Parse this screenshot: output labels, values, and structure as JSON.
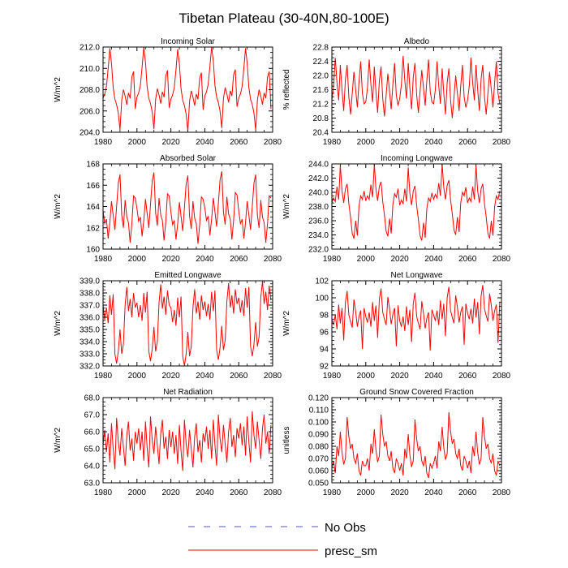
{
  "figure": {
    "title": "Tibetan Plateau (30-40N,80-100E)",
    "legend": [
      {
        "label": "No Obs",
        "color": "#5050c8",
        "style": "dashed"
      },
      {
        "label": "presc_sm",
        "color": "#ff0000",
        "style": "solid"
      }
    ]
  },
  "chart_data": [
    {
      "type": "line",
      "title": "Incoming Solar",
      "xlabel": "",
      "ylabel": "W/m^2",
      "xlim": [
        1980,
        2080
      ],
      "ylim": [
        204,
        212
      ],
      "yticks": [
        204,
        206,
        208,
        210,
        212
      ],
      "decimals": 1,
      "series_name": "presc_sm",
      "color": "#ff0000",
      "x_start": 1980,
      "x_end": 2079,
      "pattern": [
        207.2,
        207.6,
        208.3,
        210.0,
        211.9,
        210.5,
        208.2,
        207.1,
        206.6,
        205.8,
        204.2,
        207.0,
        208.0,
        207.4,
        206.6,
        207.7,
        207.2,
        209.2,
        209.7,
        206.2
      ],
      "mods": [
        0.0,
        0.1,
        -0.1,
        0.2,
        0.0
      ]
    },
    {
      "type": "line",
      "title": "Albedo",
      "xlabel": "",
      "ylabel": "% reflected",
      "xlim": [
        1980,
        2080
      ],
      "ylim": [
        20.4,
        22.8
      ],
      "yticks": [
        20.4,
        20.8,
        21.2,
        21.6,
        22.0,
        22.4,
        22.8
      ],
      "decimals": 1,
      "series_name": "presc_sm",
      "color": "#ff0000",
      "x_start": 1980,
      "x_end": 2079,
      "pattern": [
        21.3,
        21.7,
        22.5,
        21.8,
        21.3,
        22.3,
        21.6,
        21.0,
        21.9,
        22.3,
        21.4,
        20.9,
        21.5,
        22.1,
        21.6,
        21.1,
        21.8,
        22.4,
        21.5,
        21.2
      ],
      "mods": [
        0.0,
        -0.05,
        0.05,
        -0.1,
        0.0
      ]
    },
    {
      "type": "line",
      "title": "Absorbed Solar",
      "xlabel": "",
      "ylabel": "W/m^2",
      "xlim": [
        1980,
        2080
      ],
      "ylim": [
        160,
        168
      ],
      "yticks": [
        160,
        162,
        164,
        166,
        168
      ],
      "decimals": 0,
      "series_name": "presc_sm",
      "color": "#ff0000",
      "x_start": 1980,
      "x_end": 2079,
      "pattern": [
        163.6,
        162.4,
        162.8,
        161.0,
        162.5,
        164.5,
        163.2,
        161.8,
        164.0,
        166.2,
        167.0,
        163.2,
        162.0,
        164.6,
        163.0,
        162.5,
        160.6,
        162.4,
        165.0,
        164.8
      ],
      "mods": [
        0.0,
        0.2,
        -0.1,
        0.3,
        0.0
      ]
    },
    {
      "type": "line",
      "title": "Incoming Longwave",
      "xlabel": "",
      "ylabel": "W/m^2",
      "xlim": [
        1980,
        2080
      ],
      "ylim": [
        232,
        244
      ],
      "yticks": [
        232.0,
        234.0,
        236.0,
        238.0,
        240.0,
        242.0,
        244.0
      ],
      "decimals": 1,
      "series_name": "presc_sm",
      "color": "#ff0000",
      "x_start": 1980,
      "x_end": 2079,
      "pattern": [
        238.5,
        239.2,
        238.7,
        240.8,
        239.0,
        243.8,
        240.2,
        238.5,
        240.5,
        241.2,
        238.4,
        236.5,
        234.2,
        233.5,
        236.0,
        233.9,
        238.0,
        239.5,
        239.0,
        240.2
      ],
      "mods": [
        0.0,
        0.3,
        -0.3,
        0.5,
        0.0
      ]
    },
    {
      "type": "line",
      "title": "Emitted Longwave",
      "xlabel": "",
      "ylabel": "W/m^2",
      "xlim": [
        1980,
        2080
      ],
      "ylim": [
        332,
        339
      ],
      "yticks": [
        332.0,
        333.0,
        334.0,
        335.0,
        336.0,
        337.0,
        338.0,
        339.0
      ],
      "decimals": 1,
      "series_name": "presc_sm",
      "color": "#ff0000",
      "x_start": 1980,
      "x_end": 2079,
      "pattern": [
        337.0,
        335.8,
        336.8,
        335.5,
        337.8,
        336.2,
        337.9,
        333.0,
        332.2,
        333.2,
        335.0,
        333.0,
        333.8,
        337.0,
        338.5,
        336.5,
        337.5,
        336.0,
        338.0,
        336.8
      ],
      "mods": [
        0.0,
        0.2,
        -0.2,
        0.3,
        0.6
      ]
    },
    {
      "type": "line",
      "title": "Net Longwave",
      "xlabel": "",
      "ylabel": "W/m^2",
      "xlim": [
        1980,
        2080
      ],
      "ylim": [
        92,
        102
      ],
      "yticks": [
        92,
        94,
        96,
        98,
        100,
        102
      ],
      "decimals": 0,
      "series_name": "presc_sm",
      "color": "#ff0000",
      "x_start": 1980,
      "x_end": 2079,
      "pattern": [
        97.5,
        96.8,
        98.0,
        96.3,
        99.2,
        97.0,
        98.8,
        95.0,
        99.5,
        100.8,
        98.0,
        97.2,
        96.5,
        99.8,
        98.4,
        96.6,
        97.8,
        98.5,
        94.0,
        98.8
      ],
      "mods": [
        0.0,
        0.3,
        -0.2,
        0.5,
        0.7
      ]
    },
    {
      "type": "line",
      "title": "Net Radiation",
      "xlabel": "",
      "ylabel": "W/m^2",
      "xlim": [
        1980,
        2080
      ],
      "ylim": [
        63,
        68
      ],
      "yticks": [
        63.0,
        64.0,
        65.0,
        66.0,
        67.0,
        68.0
      ],
      "decimals": 1,
      "series_name": "presc_sm",
      "color": "#ff0000",
      "x_start": 1980,
      "x_end": 2079,
      "pattern": [
        65.2,
        66.1,
        64.8,
        65.9,
        64.2,
        66.5,
        65.0,
        63.8,
        66.8,
        65.4,
        64.6,
        66.2,
        65.1,
        64.0,
        65.8,
        66.6,
        64.9,
        65.6,
        64.3,
        66.0
      ],
      "mods": [
        0.0,
        0.1,
        -0.1,
        0.2,
        0.4
      ]
    },
    {
      "type": "line",
      "title": "Ground Snow Covered Fraction",
      "xlabel": "",
      "ylabel": "unitless",
      "xlim": [
        1980,
        2080
      ],
      "ylim": [
        0.05,
        0.12
      ],
      "yticks": [
        0.05,
        0.06,
        0.07,
        0.08,
        0.09,
        0.1,
        0.11,
        0.12
      ],
      "decimals": 3,
      "series_name": "presc_sm",
      "color": "#ff0000",
      "x_start": 1980,
      "x_end": 2079,
      "pattern": [
        0.062,
        0.068,
        0.058,
        0.08,
        0.072,
        0.092,
        0.075,
        0.065,
        0.07,
        0.104,
        0.088,
        0.078,
        0.082,
        0.07,
        0.066,
        0.074,
        0.06,
        0.056,
        0.068,
        0.064
      ],
      "mods": [
        0.0,
        0.002,
        -0.002,
        0.004,
        0.0
      ]
    }
  ]
}
